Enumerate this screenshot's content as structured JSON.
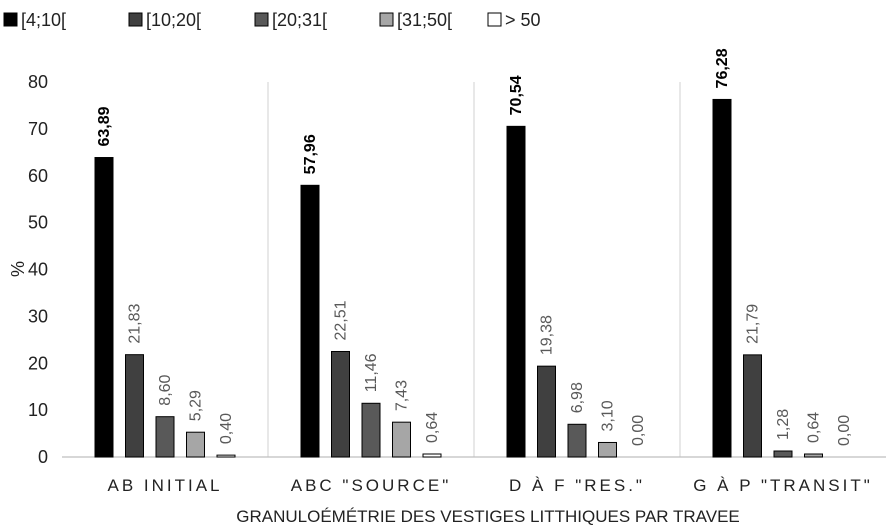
{
  "chart_data": {
    "type": "bar",
    "categories": [
      "AB INITIAL",
      "ABC \"SOURCE\"",
      "D À F \"RES.\"",
      "G À P \"TRANSIT\""
    ],
    "series": [
      {
        "name": "[4;10[",
        "color": "#000000",
        "values": [
          63.89,
          57.96,
          70.54,
          76.28
        ],
        "labels": [
          "63,89",
          "57,96",
          "70,54",
          "76,28"
        ]
      },
      {
        "name": "[10;20[",
        "color": "#404040",
        "values": [
          21.83,
          22.51,
          19.38,
          21.79
        ],
        "labels": [
          "21,83",
          "22,51",
          "19,38",
          "21,79"
        ]
      },
      {
        "name": "[20;31[",
        "color": "#595959",
        "values": [
          8.6,
          11.46,
          6.98,
          1.28
        ],
        "labels": [
          "8,60",
          "11,46",
          "6,98",
          "1,28"
        ]
      },
      {
        "name": "[31;50[",
        "color": "#a6a6a6",
        "values": [
          5.29,
          7.43,
          3.1,
          0.64
        ],
        "labels": [
          "5,29",
          "7,43",
          "3,10",
          "0,64"
        ]
      },
      {
        "name": "> 50",
        "color": "#ffffff",
        "values": [
          0.4,
          0.64,
          0.0,
          0.0
        ],
        "labels": [
          "0,40",
          "0,64",
          "0,00",
          "0,00"
        ]
      }
    ],
    "title": "",
    "xlabel": "GRANULOÉMÉTRIE DES VESTIGES LITTHIQUES PAR TRAVEE",
    "ylabel": "%",
    "ylim": [
      0,
      80
    ],
    "yticks": [
      0,
      10,
      20,
      30,
      40,
      50,
      60,
      70,
      80
    ],
    "legend_position": "top-left",
    "grid": false,
    "category_separators": true
  }
}
